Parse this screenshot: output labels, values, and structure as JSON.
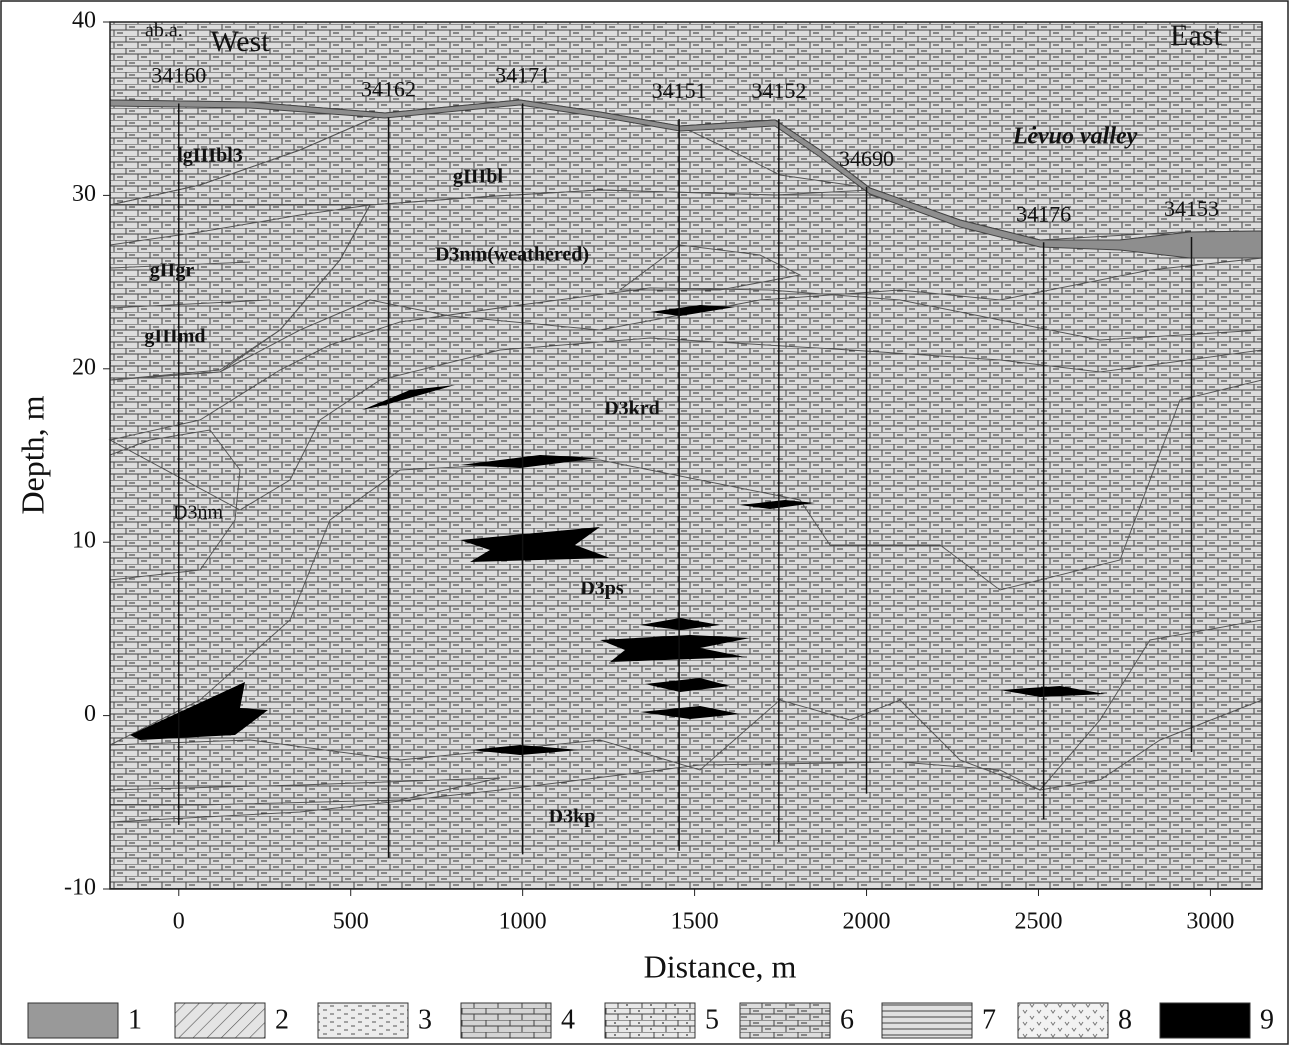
{
  "chart_data": {
    "type": "cross-section",
    "xlabel": "Distance, m",
    "ylabel": "Depth, m",
    "xlim": [
      -200,
      3150
    ],
    "ylim": [
      -10,
      40
    ],
    "xticks": [
      0,
      500,
      1000,
      1500,
      2000,
      2500,
      3000
    ],
    "yticks": [
      -10,
      0,
      10,
      20,
      30,
      40
    ],
    "corner_label": "ab.a.",
    "west_label": "West",
    "east_label": "East",
    "valley_label": "Lėvuo valley",
    "boreholes": [
      {
        "name": "34160",
        "x": 0,
        "top": 35.3,
        "bottom": -6.3
      },
      {
        "name": "34162",
        "x": 610,
        "top": 34.5,
        "bottom": -8.2
      },
      {
        "name": "34171",
        "x": 1000,
        "top": 35.3,
        "bottom": -8
      },
      {
        "name": "34151",
        "x": 1455,
        "top": 34.4,
        "bottom": -7.8
      },
      {
        "name": "34152",
        "x": 1745,
        "top": 34.4,
        "bottom": -7.3
      },
      {
        "name": "34690",
        "x": 2000,
        "top": 30.5,
        "bottom": -4.5
      },
      {
        "name": "34176",
        "x": 2515,
        "top": 27.3,
        "bottom": -6
      },
      {
        "name": "34153",
        "x": 2945,
        "top": 27.6,
        "bottom": -2.1
      }
    ],
    "layer_labels": [
      "lgIIIbl3",
      "gIIIbl",
      "gIIgr",
      "gIIImd",
      "D3nm(weathered)",
      "D3krd",
      "D3nm",
      "D3ps",
      "D3kp"
    ],
    "legend": [
      "1",
      "2",
      "3",
      "4",
      "5",
      "6",
      "7",
      "8",
      "9"
    ]
  }
}
